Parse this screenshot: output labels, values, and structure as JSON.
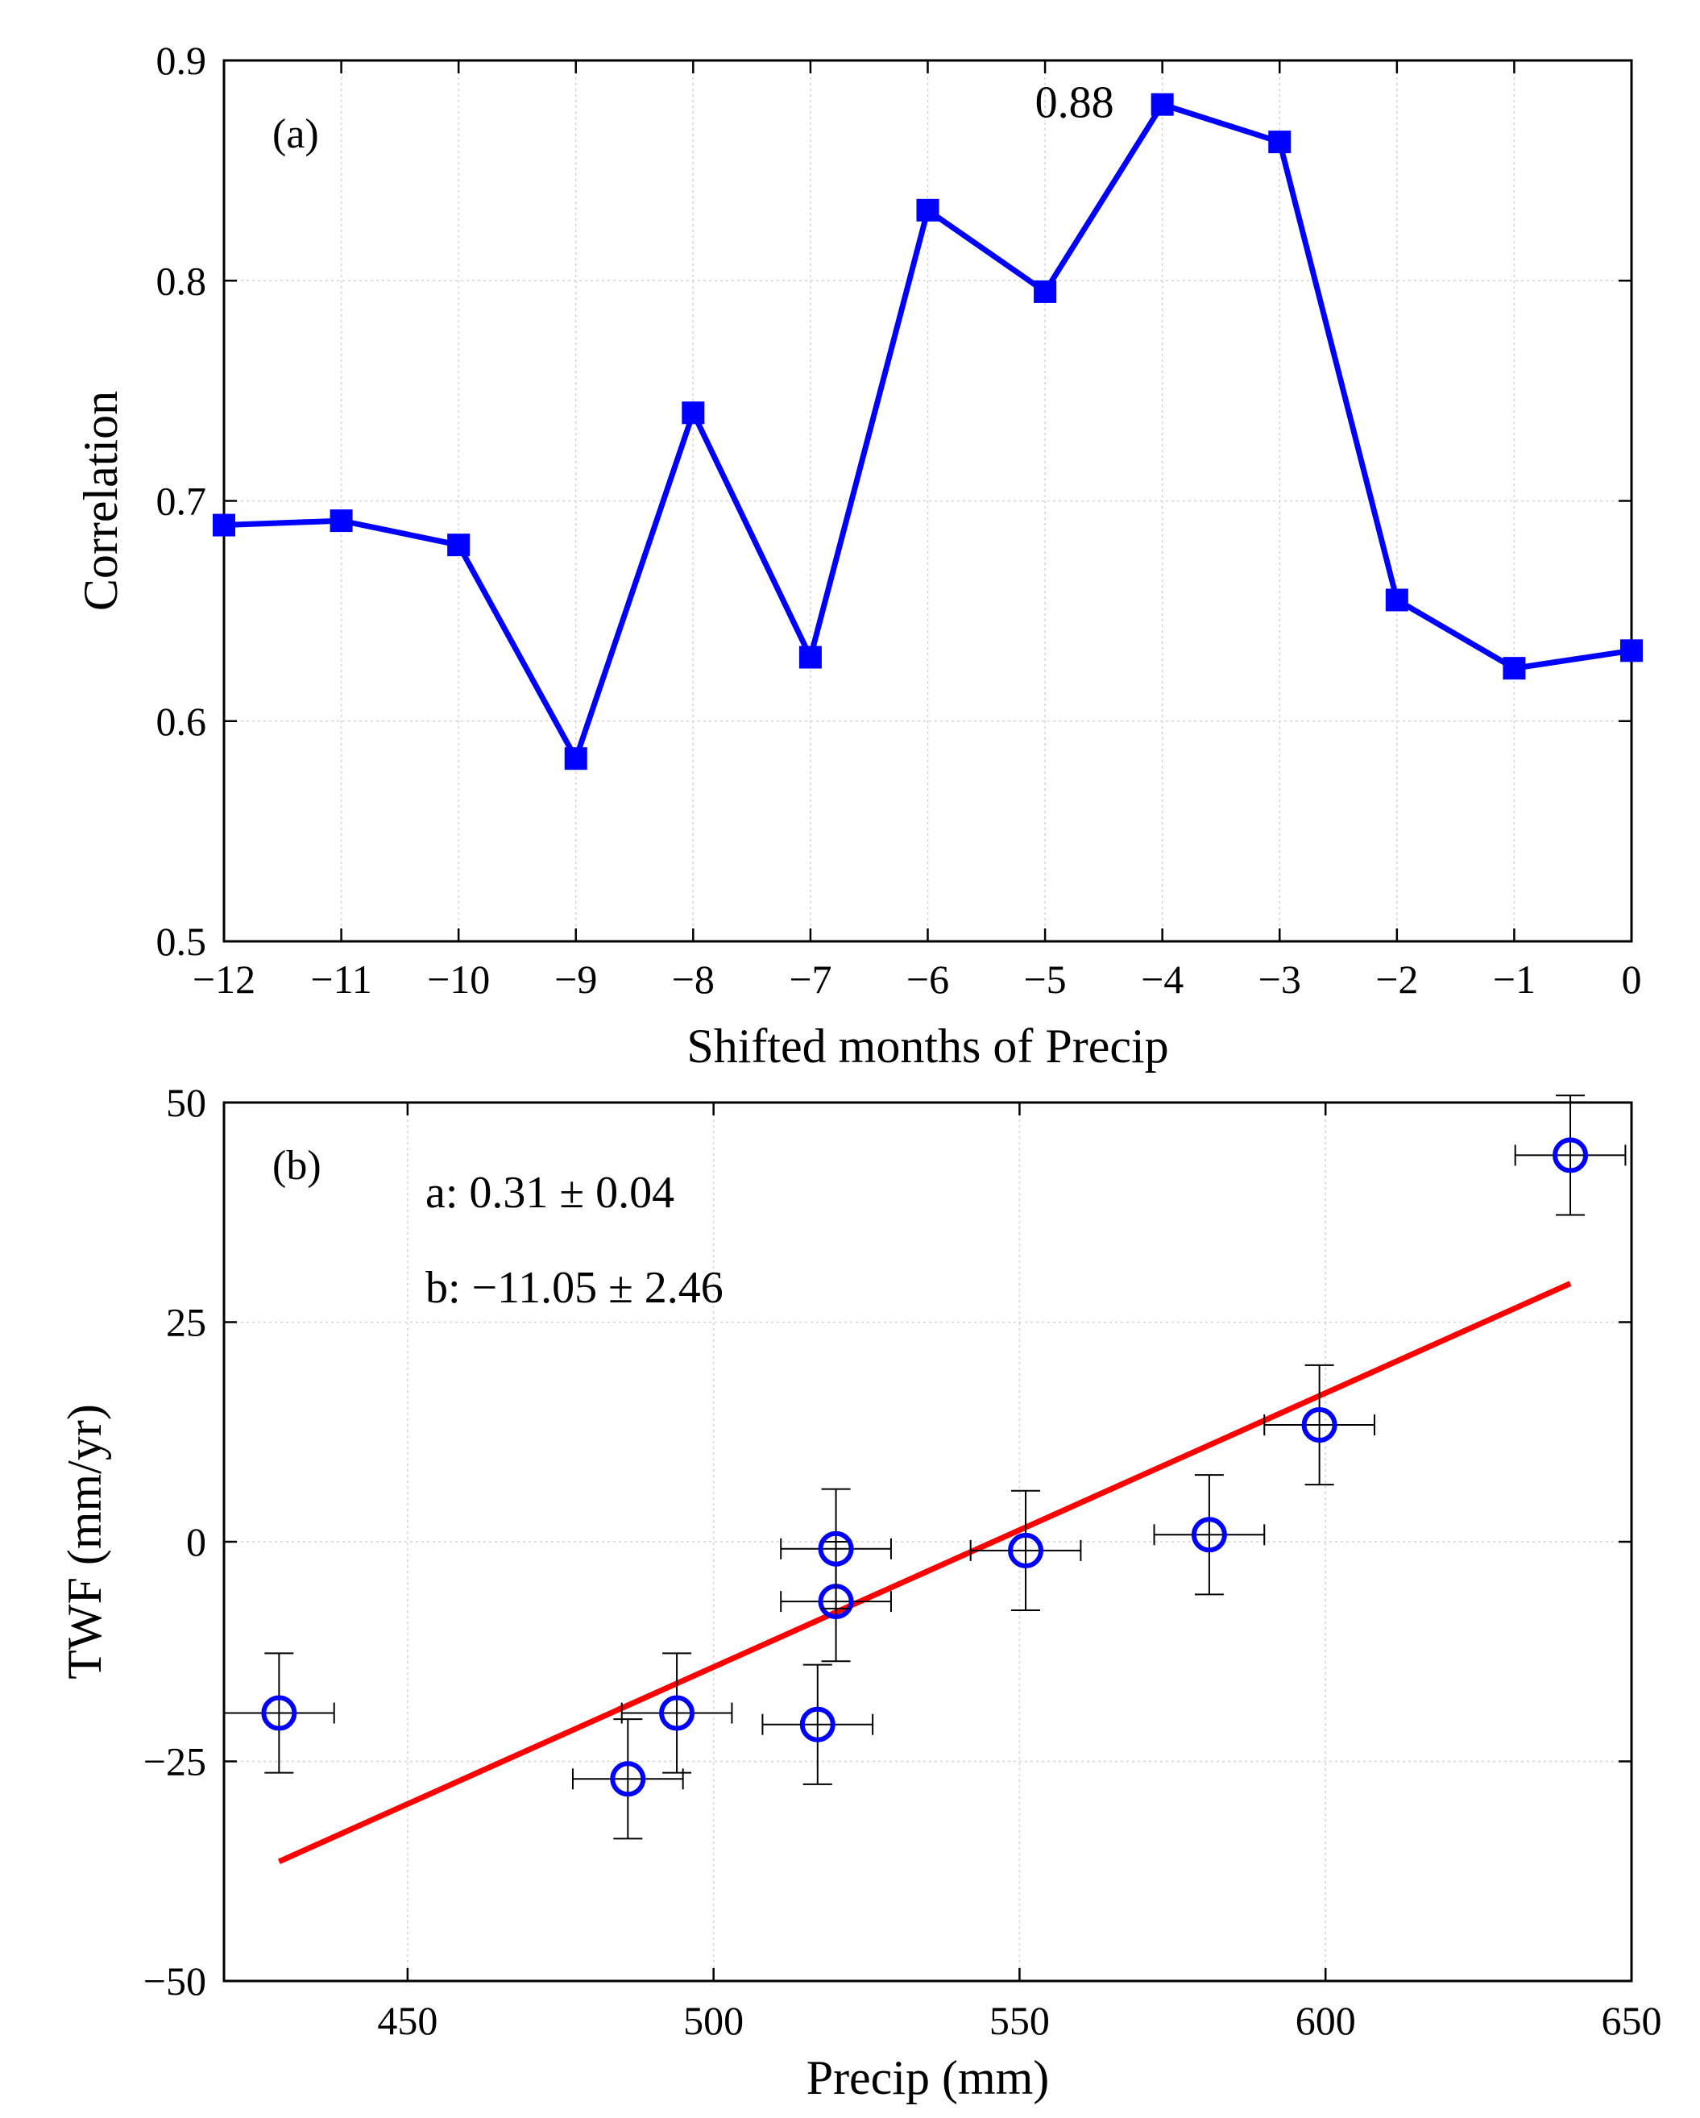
{
  "chart_data": [
    {
      "type": "line",
      "panel_label": "(a)",
      "title": "",
      "xlabel": "Shifted months of Precip",
      "ylabel": "Correlation",
      "xlim": [
        -12,
        0
      ],
      "ylim": [
        0.5,
        0.9
      ],
      "grid": true,
      "x": [
        -12,
        -11,
        -10,
        -9,
        -8,
        -7,
        -6,
        -5,
        -4,
        -3,
        -2,
        -1,
        0
      ],
      "x_tick_labels": [
        "−12",
        "−11",
        "−10",
        "−9",
        "−8",
        "−7",
        "−6",
        "−5",
        "−4",
        "−3",
        "−2",
        "−1",
        "0"
      ],
      "y_ticks": [
        0.5,
        0.6,
        0.7,
        0.8,
        0.9
      ],
      "y_tick_labels": [
        "0.5",
        "0.6",
        "0.7",
        "0.8",
        "0.9"
      ],
      "series": [
        {
          "name": "Correlation",
          "color": "#0000ff",
          "marker": "square",
          "values": [
            0.689,
            0.691,
            0.68,
            0.583,
            0.74,
            0.629,
            0.832,
            0.795,
            0.88,
            0.863,
            0.655,
            0.624,
            0.632
          ]
        }
      ],
      "annotations": [
        {
          "text": "0.88",
          "x": -4,
          "y": 0.88
        }
      ]
    },
    {
      "type": "scatter",
      "panel_label": "(b)",
      "title": "",
      "xlabel": "Precip (mm)",
      "ylabel": "TWF (mm/yr)",
      "xlim": [
        420,
        650
      ],
      "ylim": [
        -50,
        50
      ],
      "grid": true,
      "x_ticks": [
        450,
        500,
        550,
        600,
        650
      ],
      "x_tick_labels": [
        "450",
        "500",
        "550",
        "600",
        "650"
      ],
      "y_ticks": [
        -50,
        -25,
        0,
        25,
        50
      ],
      "y_tick_labels": [
        "−50",
        "−25",
        "0",
        "25",
        "50"
      ],
      "series": [
        {
          "name": "TWF vs Precip",
          "color": "#0000ff",
          "marker": "open-circle",
          "points": [
            {
              "x": 429,
              "y": -19.5,
              "xerr": 9,
              "yerr": 6.8
            },
            {
              "x": 486,
              "y": -27,
              "xerr": 9,
              "yerr": 6.8
            },
            {
              "x": 494,
              "y": -19.5,
              "xerr": 9,
              "yerr": 6.8
            },
            {
              "x": 517,
              "y": -20.8,
              "xerr": 9,
              "yerr": 6.8
            },
            {
              "x": 520,
              "y": -6.8,
              "xerr": 9,
              "yerr": 6.8
            },
            {
              "x": 520,
              "y": -0.8,
              "xerr": 9,
              "yerr": 6.8
            },
            {
              "x": 551,
              "y": -1,
              "xerr": 9,
              "yerr": 6.8
            },
            {
              "x": 581,
              "y": 0.8,
              "xerr": 9,
              "yerr": 6.8
            },
            {
              "x": 599,
              "y": 13.3,
              "xerr": 9,
              "yerr": 6.8
            },
            {
              "x": 640,
              "y": 44,
              "xerr": 9,
              "yerr": 6.8
            }
          ]
        },
        {
          "name": "Linear fit",
          "type": "line",
          "color": "#ff0000",
          "x": [
            429,
            640
          ],
          "y": [
            -36.4,
            29.4
          ]
        }
      ],
      "annotations": [
        {
          "text": "a: 0.31 ± 0.04"
        },
        {
          "text": "b: −11.05 ± 2.46"
        }
      ]
    }
  ]
}
